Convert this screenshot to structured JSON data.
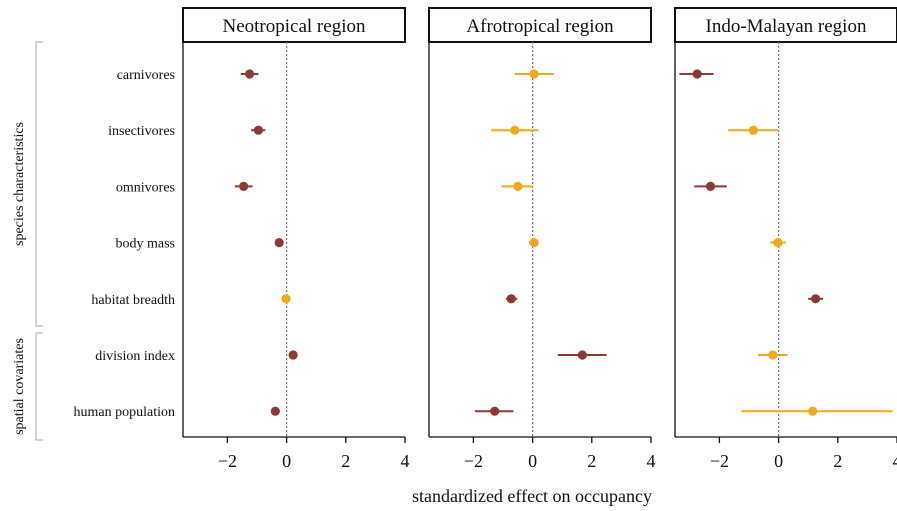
{
  "chart_data": {
    "type": "scatter",
    "subtype": "forest-plot",
    "xlabel": "standardized effect on occupancy",
    "xlim": [
      -3.5,
      4
    ],
    "xticks": [
      -2,
      0,
      2,
      4
    ],
    "xtick_labels": [
      "−2",
      "0",
      "2",
      "4"
    ],
    "reference_line": 0,
    "rows": [
      "carnivores",
      "insectivores",
      "omnivores",
      "body mass",
      "habitat breadth",
      "division index",
      "human population"
    ],
    "groups": [
      {
        "label": "species characteristics",
        "rows": [
          "carnivores",
          "insectivores",
          "omnivores",
          "body mass",
          "habitat breadth"
        ]
      },
      {
        "label": "spatial covariates",
        "rows": [
          "division index",
          "human population"
        ]
      }
    ],
    "colors": {
      "significant": "#8b3a36",
      "non_significant": "#f2a81d"
    },
    "panels": [
      {
        "title": "Neotropical region",
        "estimates": [
          {
            "row": "carnivores",
            "value": -1.25,
            "lower": -1.55,
            "upper": -0.95,
            "significant": true
          },
          {
            "row": "insectivores",
            "value": -0.95,
            "lower": -1.2,
            "upper": -0.72,
            "significant": true
          },
          {
            "row": "omnivores",
            "value": -1.45,
            "lower": -1.75,
            "upper": -1.15,
            "significant": true
          },
          {
            "row": "body mass",
            "value": -0.25,
            "lower": -0.38,
            "upper": -0.12,
            "significant": true
          },
          {
            "row": "habitat breadth",
            "value": -0.02,
            "lower": -0.1,
            "upper": 0.06,
            "significant": false
          },
          {
            "row": "division index",
            "value": 0.22,
            "lower": 0.15,
            "upper": 0.29,
            "significant": true
          },
          {
            "row": "human population",
            "value": -0.38,
            "lower": -0.47,
            "upper": -0.29,
            "significant": true
          }
        ]
      },
      {
        "title": "Afrotropical region",
        "estimates": [
          {
            "row": "carnivores",
            "value": 0.05,
            "lower": -0.6,
            "upper": 0.72,
            "significant": false
          },
          {
            "row": "insectivores",
            "value": -0.6,
            "lower": -1.4,
            "upper": 0.2,
            "significant": false
          },
          {
            "row": "omnivores",
            "value": -0.5,
            "lower": -1.05,
            "upper": 0.02,
            "significant": false
          },
          {
            "row": "body mass",
            "value": 0.05,
            "lower": -0.12,
            "upper": 0.2,
            "significant": false
          },
          {
            "row": "habitat breadth",
            "value": -0.72,
            "lower": -0.9,
            "upper": -0.52,
            "significant": true
          },
          {
            "row": "division index",
            "value": 1.68,
            "lower": 0.85,
            "upper": 2.5,
            "significant": true
          },
          {
            "row": "human population",
            "value": -1.28,
            "lower": -1.95,
            "upper": -0.65,
            "significant": true
          }
        ]
      },
      {
        "title": "Indo-Malayan region",
        "estimates": [
          {
            "row": "carnivores",
            "value": -2.75,
            "lower": -3.35,
            "upper": -2.2,
            "significant": true
          },
          {
            "row": "insectivores",
            "value": -0.85,
            "lower": -1.7,
            "upper": 0.02,
            "significant": false
          },
          {
            "row": "omnivores",
            "value": -2.3,
            "lower": -2.85,
            "upper": -1.75,
            "significant": true
          },
          {
            "row": "body mass",
            "value": -0.02,
            "lower": -0.28,
            "upper": 0.25,
            "significant": false
          },
          {
            "row": "habitat breadth",
            "value": 1.25,
            "lower": 1.0,
            "upper": 1.5,
            "significant": true
          },
          {
            "row": "division index",
            "value": -0.2,
            "lower": -0.7,
            "upper": 0.3,
            "significant": false
          },
          {
            "row": "human population",
            "value": 1.15,
            "lower": -1.25,
            "upper": 3.85,
            "significant": false
          }
        ]
      }
    ]
  }
}
